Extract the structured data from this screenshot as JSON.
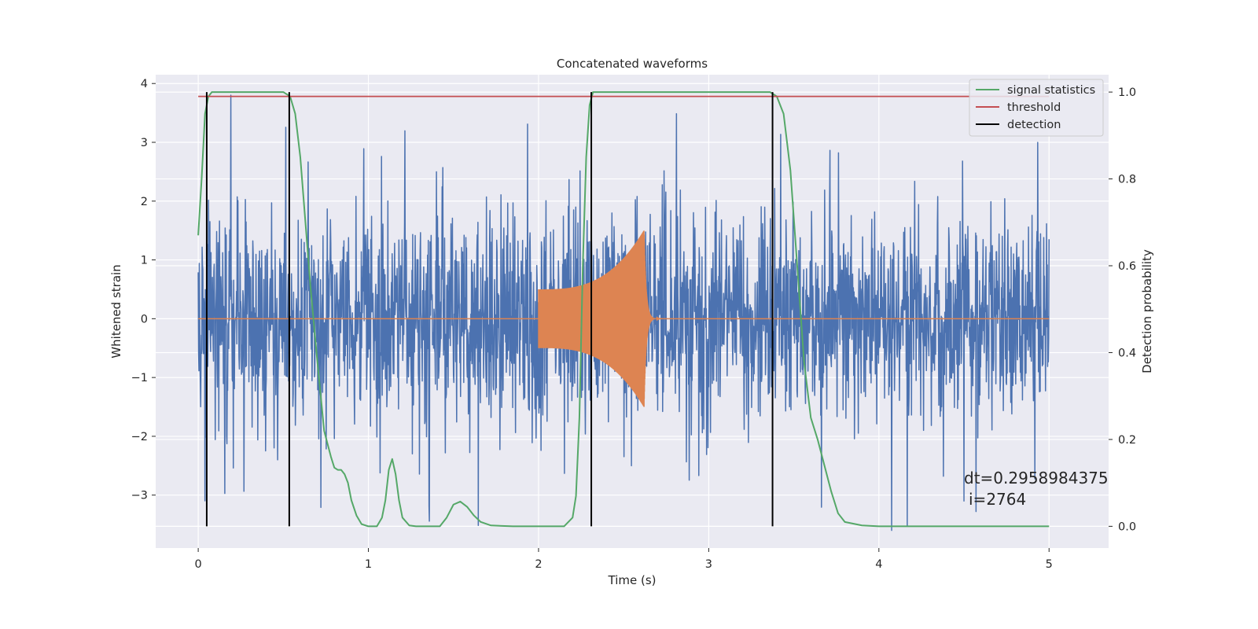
{
  "chart_data": {
    "type": "line",
    "title": "Concatenated waveforms",
    "xlabel": "Time (s)",
    "ylabel": "Whitened strain",
    "ylabel_right": "Detection probability",
    "xlim": [
      -0.25,
      5.35
    ],
    "ylim": [
      -3.9,
      4.15
    ],
    "ylim_right": [
      -0.05,
      1.04
    ],
    "x_ticks": [
      0,
      1,
      2,
      3,
      4,
      5
    ],
    "y_ticks": [
      -3,
      -2,
      -1,
      0,
      1,
      2,
      3,
      4
    ],
    "y_ticks_right": [
      0.0,
      0.2,
      0.4,
      0.6,
      0.8,
      1.0
    ],
    "grid": true,
    "legend_position": "top-right",
    "series": [
      {
        "name": "",
        "axis": "left",
        "kind": "noise",
        "color": "#4c72b0",
        "x_range": [
          0,
          5
        ],
        "amplitude_envelope": [
          -3.6,
          3.8
        ]
      },
      {
        "name": "",
        "axis": "left",
        "kind": "chirp",
        "color": "#dd8452",
        "start": 2.0,
        "merger": 2.62,
        "ringdown_end": 2.8,
        "amplitude_start": 0.5,
        "amplitude_peak": 1.5
      },
      {
        "name": "signal statistics",
        "axis": "right",
        "color": "#55a868",
        "x": [
          0,
          0.02,
          0.04,
          0.06,
          0.08,
          0.1,
          0.15,
          0.3,
          0.5,
          0.54,
          0.57,
          0.6,
          0.63,
          0.66,
          0.7,
          0.74,
          0.78,
          0.8,
          0.82,
          0.84,
          0.86,
          0.88,
          0.9,
          0.93,
          0.96,
          1.0,
          1.05,
          1.08,
          1.1,
          1.12,
          1.14,
          1.16,
          1.18,
          1.2,
          1.24,
          1.28,
          1.35,
          1.42,
          1.46,
          1.5,
          1.54,
          1.58,
          1.62,
          1.66,
          1.72,
          1.85,
          2.0,
          2.15,
          2.2,
          2.22,
          2.24,
          2.26,
          2.28,
          2.3,
          2.32,
          2.36,
          2.4,
          2.6,
          3.0,
          3.36,
          3.4,
          3.44,
          3.48,
          3.52,
          3.56,
          3.6,
          3.64,
          3.68,
          3.72,
          3.76,
          3.8,
          3.9,
          4.0,
          4.5,
          5.0
        ],
        "y": [
          0.67,
          0.8,
          0.95,
          0.99,
          1.0,
          1.0,
          1.0,
          1.0,
          1.0,
          0.99,
          0.95,
          0.85,
          0.7,
          0.55,
          0.38,
          0.22,
          0.16,
          0.135,
          0.13,
          0.13,
          0.12,
          0.1,
          0.06,
          0.025,
          0.005,
          0.0,
          0.0,
          0.02,
          0.06,
          0.13,
          0.155,
          0.12,
          0.06,
          0.02,
          0.002,
          0.0,
          0.0,
          0.0,
          0.02,
          0.05,
          0.057,
          0.045,
          0.025,
          0.01,
          0.002,
          0.0,
          0.0,
          0.0,
          0.02,
          0.07,
          0.25,
          0.6,
          0.85,
          0.97,
          1.0,
          1.0,
          1.0,
          1.0,
          1.0,
          1.0,
          0.99,
          0.95,
          0.82,
          0.6,
          0.38,
          0.25,
          0.2,
          0.14,
          0.08,
          0.03,
          0.01,
          0.002,
          0.0,
          0.0,
          0.0
        ]
      },
      {
        "name": "threshold",
        "axis": "right",
        "color": "#c44e52",
        "x": [
          0,
          5
        ],
        "y": [
          0.99,
          0.99
        ]
      },
      {
        "name": "detection",
        "axis": "right",
        "color": "#000000",
        "kind": "vlines",
        "x": [
          0.05,
          0.535,
          2.31,
          3.375
        ],
        "y_range": [
          0.0,
          1.0
        ]
      }
    ],
    "annotation": {
      "line1": "dt=0.2958984375",
      "line2": "i=2764"
    }
  }
}
